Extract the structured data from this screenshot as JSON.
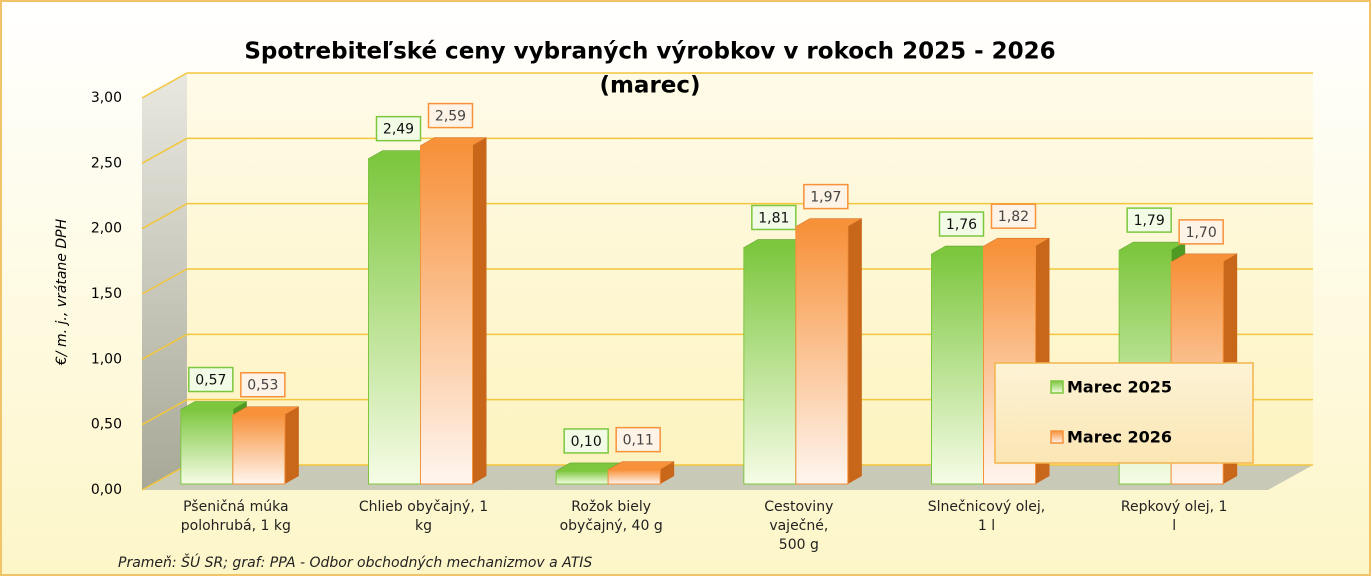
{
  "chart_data": {
    "type": "bar3d",
    "title": "Spotrebiteľské ceny vybraných výrobkov v rokoch 2025 - 2026",
    "subtitle": "(marec)",
    "y_label": "€/ m. j., vrátane DPH",
    "source": "Prameň: ŠÚ SR; graf: PPA - Odbor obchodných mechanizmov a ATIS",
    "categories": [
      "Pšeničná múka polohrubá, 1 kg",
      "Chlieb obyčajný, 1 kg",
      "Rožok biely obyčajný, 40 g",
      "Cestoviny vaječné, 500 g",
      "Slnečnicový olej, 1 l",
      "Repkový olej, 1 l"
    ],
    "series": [
      {
        "name": "Marec 2025",
        "color": "#7dc73f",
        "values": [
          0.57,
          2.49,
          0.1,
          1.81,
          1.76,
          1.79
        ],
        "value_labels": [
          "0,57",
          "2,49",
          "0,10",
          "1,81",
          "1,76",
          "1,79"
        ]
      },
      {
        "name": "Marec 2026",
        "color": "#f7913a",
        "values": [
          0.53,
          2.59,
          0.11,
          1.97,
          1.82,
          1.7
        ],
        "value_labels": [
          "0,53",
          "2,59",
          "0,11",
          "1,97",
          "1,82",
          "1,70"
        ]
      }
    ],
    "ylim": [
      0,
      3
    ],
    "yticks": [
      {
        "value": 0,
        "label": "0,00"
      },
      {
        "value": 0.5,
        "label": "0,50"
      },
      {
        "value": 1,
        "label": "1,00"
      },
      {
        "value": 1.5,
        "label": "1,50"
      },
      {
        "value": 2,
        "label": "2,00"
      },
      {
        "value": 2.5,
        "label": "2,50"
      },
      {
        "value": 3,
        "label": "3,00"
      }
    ],
    "grid": true,
    "legend": "right"
  }
}
